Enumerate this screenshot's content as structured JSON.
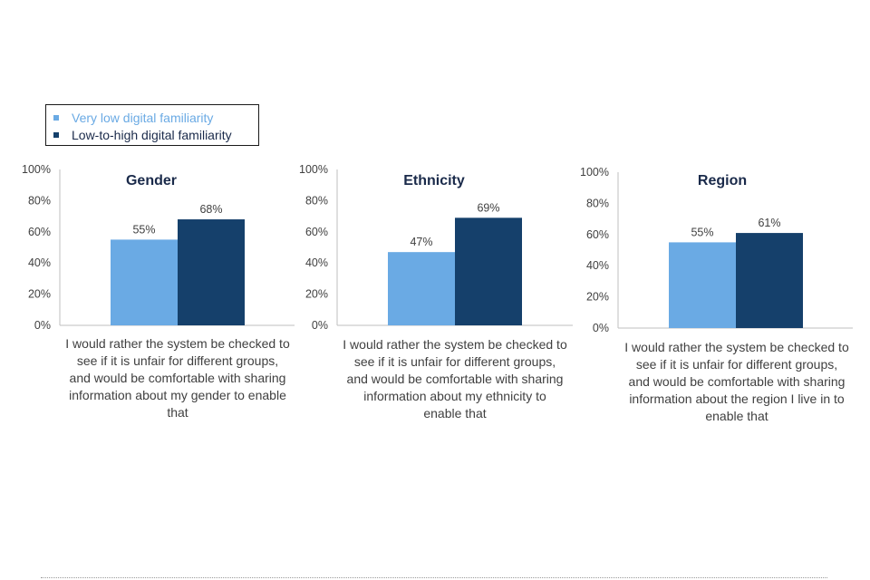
{
  "colors": {
    "series_light": "#6aaae4",
    "series_dark": "#15406b",
    "axis": "#bfbfbf",
    "title": "#1a2a4a"
  },
  "legend": {
    "items": [
      {
        "label": "Very low digital familiarity",
        "color": "#6aaae4"
      },
      {
        "label": "Low-to-high digital familiarity",
        "color": "#15406b"
      }
    ]
  },
  "chart_data": [
    {
      "type": "bar",
      "title": "Gender",
      "categories": [
        "I would rather the system be checked to see if it is unfair for different groups, and would be comfortable with sharing information about my gender to enable that"
      ],
      "caption_lines": [
        "I would rather the system be checked to",
        "see if it is unfair for different groups,",
        "and would be comfortable with sharing",
        "information about my gender to enable",
        "that"
      ],
      "series": [
        {
          "name": "Very low digital familiarity",
          "values": [
            55
          ],
          "label": "55%"
        },
        {
          "name": "Low-to-high digital familiarity",
          "values": [
            68
          ],
          "label": "68%"
        }
      ],
      "yticks": [
        "0%",
        "20%",
        "40%",
        "60%",
        "80%",
        "100%"
      ],
      "ylim": [
        0,
        100
      ]
    },
    {
      "type": "bar",
      "title": "Ethnicity",
      "categories": [
        "I would rather the system be checked to see if it is unfair for different groups, and would be comfortable with sharing information about my ethnicity to enable that"
      ],
      "caption_lines": [
        "I would rather the system be checked to",
        "see if it is unfair for different groups,",
        "and would be comfortable with sharing",
        "information about my ethnicity to",
        "enable that"
      ],
      "series": [
        {
          "name": "Very low digital familiarity",
          "values": [
            47
          ],
          "label": "47%"
        },
        {
          "name": "Low-to-high digital familiarity",
          "values": [
            69
          ],
          "label": "69%"
        }
      ],
      "yticks": [
        "0%",
        "20%",
        "40%",
        "60%",
        "80%",
        "100%"
      ],
      "ylim": [
        0,
        100
      ]
    },
    {
      "type": "bar",
      "title": "Region",
      "categories": [
        "I would rather the system be checked to see if it is unfair for different groups, and would be comfortable with sharing information about the region I live in to enable that"
      ],
      "caption_lines": [
        "I would rather the system be checked to",
        "see if it is unfair for different groups,",
        "and would be comfortable with sharing",
        "information about the region I live in to",
        "enable that"
      ],
      "series": [
        {
          "name": "Very low digital familiarity",
          "values": [
            55
          ],
          "label": "55%"
        },
        {
          "name": "Low-to-high digital familiarity",
          "values": [
            61
          ],
          "label": "61%"
        }
      ],
      "yticks": [
        "0%",
        "20%",
        "40%",
        "60%",
        "80%",
        "100%"
      ],
      "ylim": [
        0,
        100
      ]
    }
  ]
}
